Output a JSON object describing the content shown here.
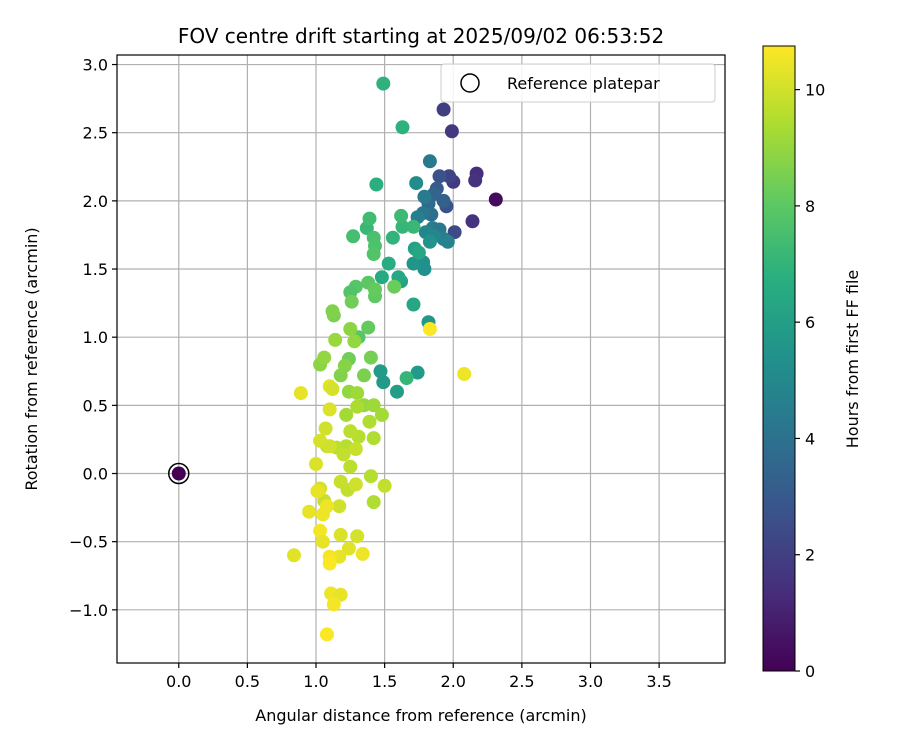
{
  "chart_data": {
    "type": "scatter",
    "title": "FOV centre drift starting at 2025/09/02 06:53:52",
    "xlabel": "Angular distance from reference (arcmin)",
    "ylabel": "Rotation from reference (arcmin)",
    "xlim": [
      -0.45,
      3.98
    ],
    "ylim": [
      -1.39,
      3.07
    ],
    "xticks": [
      "0.0",
      "0.5",
      "1.0",
      "1.5",
      "2.0",
      "2.5",
      "3.0",
      "3.5"
    ],
    "yticks": [
      "−1.0",
      "−0.5",
      "0.0",
      "0.5",
      "1.0",
      "1.5",
      "2.0",
      "2.5",
      "3.0"
    ],
    "grid": true,
    "legend": {
      "position": "top-right",
      "entries": [
        "Reference platepar"
      ]
    },
    "colorbar": {
      "label": "Hours from first FF file",
      "range": [
        0,
        10.75
      ],
      "ticks": [
        "0",
        "2",
        "4",
        "6",
        "8",
        "10"
      ],
      "colormap": "viridis"
    },
    "reference_point": {
      "x": 0.0,
      "y": 0.0,
      "hours": 0.0
    },
    "points": [
      [
        2.31,
        2.01,
        0.3
      ],
      [
        2.17,
        2.2,
        1.5
      ],
      [
        2.16,
        2.15,
        1.6
      ],
      [
        1.99,
        2.51,
        1.8
      ],
      [
        1.93,
        2.67,
        2.0
      ],
      [
        2.14,
        1.85,
        1.6
      ],
      [
        2.0,
        2.14,
        1.9
      ],
      [
        1.97,
        2.18,
        2.2
      ],
      [
        2.01,
        1.77,
        2.4
      ],
      [
        1.95,
        1.96,
        2.7
      ],
      [
        1.9,
        2.18,
        2.8
      ],
      [
        1.88,
        2.09,
        3.1
      ],
      [
        1.93,
        2.0,
        3.3
      ],
      [
        1.86,
        2.05,
        3.5
      ],
      [
        1.82,
        1.98,
        3.8
      ],
      [
        1.84,
        1.9,
        4.0
      ],
      [
        1.78,
        1.91,
        4.2
      ],
      [
        1.79,
        2.03,
        4.4
      ],
      [
        1.74,
        1.88,
        4.6
      ],
      [
        1.83,
        2.29,
        4.4
      ],
      [
        1.85,
        1.8,
        4.5
      ],
      [
        1.9,
        1.79,
        4.3
      ],
      [
        1.93,
        1.72,
        4.6
      ],
      [
        1.96,
        1.7,
        4.8
      ],
      [
        1.8,
        1.77,
        4.9
      ],
      [
        1.86,
        1.74,
        5.0
      ],
      [
        1.73,
        2.13,
        5.2
      ],
      [
        1.78,
        1.55,
        5.3
      ],
      [
        1.79,
        1.5,
        5.4
      ],
      [
        1.71,
        1.54,
        5.6
      ],
      [
        1.83,
        1.7,
        5.5
      ],
      [
        1.82,
        1.11,
        5.7
      ],
      [
        1.74,
        0.74,
        5.8
      ],
      [
        1.47,
        0.75,
        5.9
      ],
      [
        1.49,
        0.67,
        5.8
      ],
      [
        1.59,
        0.6,
        6.0
      ],
      [
        1.72,
        1.65,
        6.2
      ],
      [
        1.75,
        1.62,
        6.4
      ],
      [
        1.62,
        1.41,
        6.3
      ],
      [
        1.71,
        1.24,
        6.4
      ],
      [
        1.6,
        1.44,
        6.5
      ],
      [
        1.48,
        1.44,
        6.6
      ],
      [
        1.53,
        1.54,
        6.7
      ],
      [
        1.44,
        2.12,
        6.8
      ],
      [
        1.49,
        2.86,
        6.9
      ],
      [
        1.63,
        2.54,
        6.9
      ],
      [
        1.56,
        1.73,
        7.0
      ],
      [
        1.63,
        1.81,
        7.1
      ],
      [
        1.71,
        1.81,
        7.2
      ],
      [
        1.62,
        1.89,
        7.3
      ],
      [
        1.66,
        0.7,
        7.1
      ],
      [
        1.37,
        1.8,
        7.2
      ],
      [
        1.39,
        1.87,
        7.4
      ],
      [
        1.27,
        1.74,
        7.5
      ],
      [
        1.42,
        1.73,
        7.6
      ],
      [
        1.43,
        1.67,
        7.7
      ],
      [
        1.42,
        1.61,
        7.8
      ],
      [
        1.29,
        1.37,
        7.9
      ],
      [
        1.38,
        1.4,
        8.0
      ],
      [
        1.25,
        1.33,
        7.8
      ],
      [
        1.31,
        1.0,
        7.9
      ],
      [
        1.43,
        1.3,
        8.1
      ],
      [
        1.38,
        1.07,
        8.2
      ],
      [
        1.57,
        1.37,
        8.3
      ],
      [
        1.26,
        1.26,
        8.4
      ],
      [
        1.43,
        1.35,
        8.2
      ],
      [
        1.4,
        0.85,
        8.5
      ],
      [
        1.35,
        0.72,
        8.6
      ],
      [
        1.24,
        0.84,
        8.4
      ],
      [
        1.18,
        0.72,
        8.7
      ],
      [
        1.21,
        0.79,
        8.8
      ],
      [
        1.03,
        0.8,
        8.9
      ],
      [
        1.06,
        0.85,
        9.0
      ],
      [
        1.13,
        1.16,
        8.6
      ],
      [
        1.12,
        1.19,
        8.7
      ],
      [
        1.25,
        1.06,
        8.9
      ],
      [
        1.28,
        0.97,
        9.0
      ],
      [
        1.14,
        0.98,
        9.1
      ],
      [
        1.24,
        0.6,
        9.0
      ],
      [
        1.3,
        0.59,
        9.2
      ],
      [
        1.35,
        0.5,
        9.1
      ],
      [
        1.42,
        0.5,
        9.2
      ],
      [
        1.48,
        0.43,
        9.3
      ],
      [
        1.3,
        0.49,
        9.4
      ],
      [
        1.22,
        0.43,
        9.3
      ],
      [
        1.39,
        0.38,
        9.5
      ],
      [
        1.42,
        0.26,
        9.5
      ],
      [
        1.31,
        0.27,
        9.6
      ],
      [
        1.25,
        0.31,
        9.7
      ],
      [
        1.22,
        0.2,
        9.6
      ],
      [
        1.15,
        0.19,
        9.7
      ],
      [
        1.08,
        0.2,
        9.8
      ],
      [
        1.2,
        0.14,
        9.8
      ],
      [
        1.25,
        0.05,
        9.7
      ],
      [
        1.29,
        0.18,
        9.9
      ],
      [
        1.4,
        -0.02,
        9.6
      ],
      [
        1.5,
        -0.09,
        9.8
      ],
      [
        1.42,
        -0.21,
        9.5
      ],
      [
        1.18,
        -0.06,
        9.9
      ],
      [
        1.23,
        -0.12,
        9.8
      ],
      [
        1.29,
        -0.08,
        10.0
      ],
      [
        1.17,
        -0.24,
        10.0
      ],
      [
        1.06,
        -0.2,
        9.9
      ],
      [
        1.03,
        -0.11,
        10.1
      ],
      [
        1.0,
        0.07,
        10.2
      ],
      [
        1.03,
        0.24,
        10.1
      ],
      [
        1.07,
        0.33,
        10.0
      ],
      [
        1.1,
        0.47,
        10.2
      ],
      [
        1.1,
        0.64,
        10.3
      ],
      [
        1.12,
        0.62,
        10.1
      ],
      [
        0.89,
        0.59,
        10.4
      ],
      [
        0.84,
        -0.6,
        10.3
      ],
      [
        0.95,
        -0.28,
        10.4
      ],
      [
        1.01,
        -0.13,
        10.4
      ],
      [
        1.05,
        -0.3,
        10.5
      ],
      [
        1.08,
        -0.24,
        10.5
      ],
      [
        1.03,
        -0.42,
        10.6
      ],
      [
        1.05,
        -0.5,
        10.4
      ],
      [
        1.18,
        -0.45,
        10.2
      ],
      [
        1.24,
        -0.55,
        10.3
      ],
      [
        1.3,
        -0.46,
        10.1
      ],
      [
        1.17,
        -0.61,
        10.4
      ],
      [
        1.1,
        -0.61,
        10.6
      ],
      [
        1.1,
        -0.66,
        10.7
      ],
      [
        1.34,
        -0.59,
        10.5
      ],
      [
        1.11,
        -0.88,
        10.5
      ],
      [
        1.18,
        -0.89,
        10.4
      ],
      [
        1.13,
        -0.96,
        10.6
      ],
      [
        1.08,
        -1.18,
        10.7
      ],
      [
        1.83,
        1.06,
        10.7
      ],
      [
        2.08,
        0.73,
        10.5
      ],
      [
        1.1,
        0.2,
        10.0
      ]
    ]
  }
}
